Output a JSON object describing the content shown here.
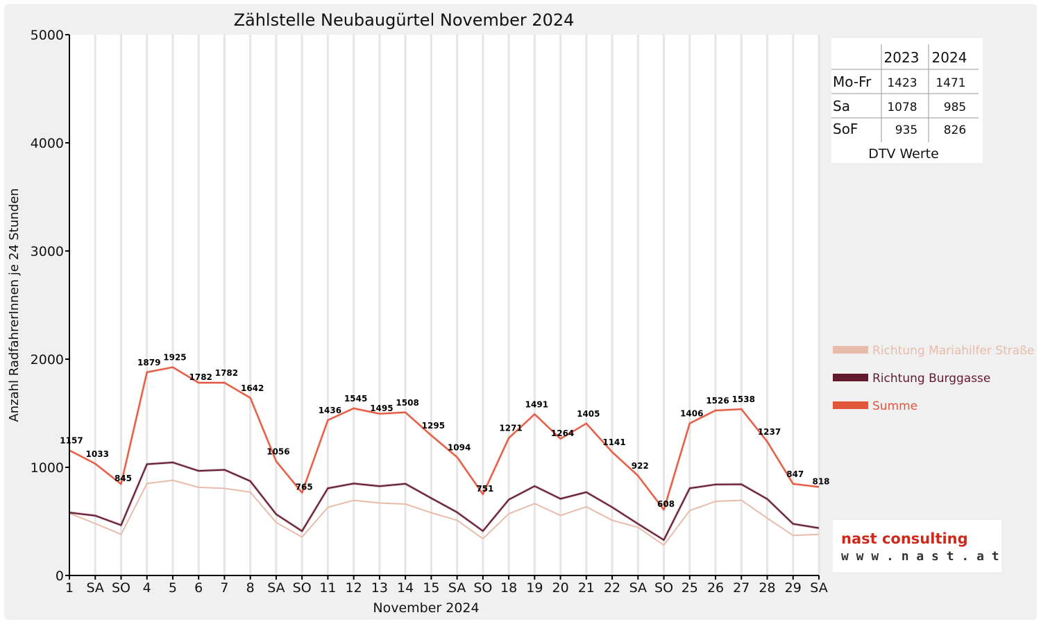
{
  "chart_data": {
    "type": "line",
    "title": "Zählstelle Neubaugürtel November 2024",
    "xlabel": "November 2024",
    "ylabel": "Anzahl RadfahrerInnen je 24 Stunden",
    "ylim": [
      0,
      5000
    ],
    "yticks": [
      0,
      1000,
      2000,
      3000,
      4000,
      5000
    ],
    "grid": "vertical",
    "legend_placement": "right",
    "categories": [
      "1",
      "SA",
      "SO",
      "4",
      "5",
      "6",
      "7",
      "8",
      "SA",
      "SO",
      "11",
      "12",
      "13",
      "14",
      "15",
      "SA",
      "SO",
      "18",
      "19",
      "20",
      "21",
      "22",
      "SA",
      "SO",
      "25",
      "26",
      "27",
      "28",
      "29",
      "SA"
    ],
    "highlighted_categories": [
      0,
      2,
      9,
      16,
      23
    ],
    "series": [
      {
        "name": "Richtung Mariahilfer Straße",
        "color": "#e8bcaa",
        "values": [
          575,
          480,
          380,
          850,
          880,
          815,
          805,
          770,
          490,
          355,
          630,
          695,
          670,
          660,
          580,
          510,
          340,
          570,
          665,
          555,
          635,
          510,
          445,
          280,
          600,
          685,
          695,
          530,
          370,
          380
        ]
      },
      {
        "name": "Richtung Burggasse",
        "color": "#631a2e",
        "values": [
          582,
          553,
          465,
          1029,
          1045,
          967,
          977,
          872,
          566,
          410,
          806,
          850,
          825,
          848,
          715,
          584,
          411,
          701,
          826,
          709,
          770,
          631,
          477,
          328,
          806,
          841,
          843,
          707,
          477,
          438
        ]
      },
      {
        "name": "Summe",
        "color": "#e0553b",
        "values": [
          1157,
          1033,
          845,
          1879,
          1925,
          1782,
          1782,
          1642,
          1056,
          765,
          1436,
          1545,
          1495,
          1508,
          1295,
          1094,
          751,
          1271,
          1491,
          1264,
          1405,
          1141,
          922,
          608,
          1406,
          1526,
          1538,
          1237,
          847,
          818
        ]
      }
    ],
    "data_labels": [
      "1157",
      "1033",
      "845",
      "1879",
      "1925",
      "1782",
      "1782",
      "1642",
      "1056",
      "765",
      "1436",
      "1545",
      "1495",
      "1508",
      "1295",
      "1094",
      "751",
      "1271",
      "1491",
      "1264",
      "1405",
      "1141",
      "922",
      "608",
      "1406",
      "1526",
      "1538",
      "1237",
      "847",
      "818"
    ]
  },
  "dtv_table": {
    "header": [
      "2023",
      "2024"
    ],
    "rows": [
      {
        "label": "Mo-Fr",
        "v2023": "1423",
        "v2024": "1471"
      },
      {
        "label": "Sa",
        "v2023": "1078",
        "v2024": "985"
      },
      {
        "label": "SoF",
        "v2023": "935",
        "v2024": "826"
      }
    ],
    "caption": "DTV Werte"
  },
  "logo": {
    "name": "nast consulting",
    "url": "w w w . n a s t . a t"
  },
  "colors": {
    "weekend_label": "#e00000",
    "axis": "#000000",
    "grid": "#e6e6e6",
    "logo_name": "#cc2a1a"
  }
}
